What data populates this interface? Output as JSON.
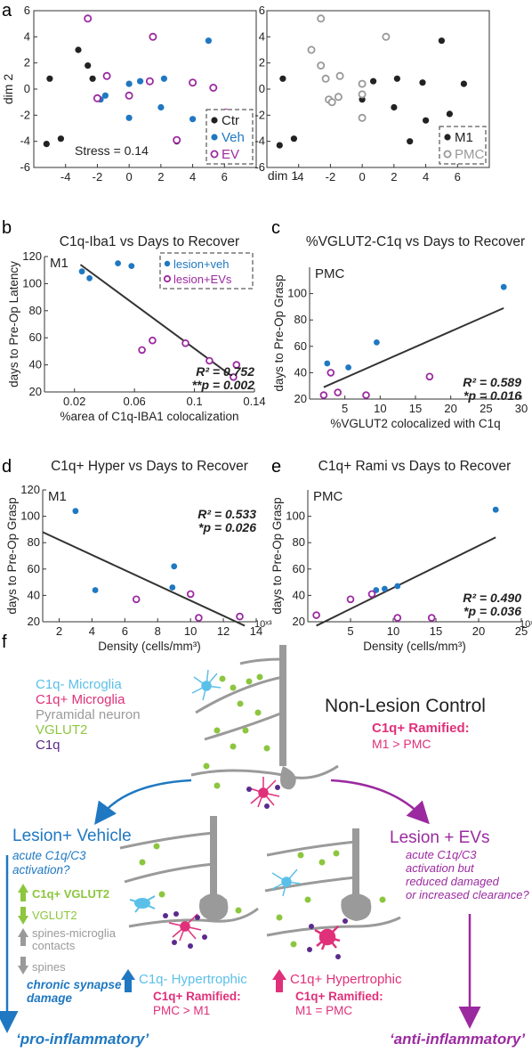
{
  "panel_letters": {
    "a": "a",
    "b": "b",
    "c": "c",
    "d": "d",
    "e": "e",
    "f": "f"
  },
  "colors": {
    "veh": "#1f78c1",
    "ev": "#9b2aa0",
    "ctr": "#222222",
    "pmc": "#999999",
    "line": "#333333",
    "neuron": "#9a9a9a",
    "microglia_neg": "#5bc0e8",
    "microglia_pos": "#e0307a",
    "vglut2": "#8cc63f",
    "c1q": "#5a2a8c",
    "arrow_veh": "#1f78c1",
    "arrow_ev": "#9b2aa0"
  },
  "chart_data": [
    {
      "id": "a1",
      "type": "scatter",
      "title": "",
      "xlabel": "dim 1",
      "ylabel": "dim 2",
      "xlim": [
        -6,
        8
      ],
      "ylim": [
        -6,
        6
      ],
      "xticks": [
        -4,
        -2,
        0,
        2,
        4,
        6
      ],
      "yticks": [
        -6,
        -4,
        -2,
        0,
        2,
        4,
        6
      ],
      "annotation": "Stress = 0.14",
      "legend": [
        "Ctr",
        "Veh",
        "EV"
      ],
      "legend_position": "bottom-right",
      "series": [
        {
          "name": "Ctr",
          "marker": "filled",
          "color": "#222222",
          "points": [
            [
              -5.2,
              -4.2
            ],
            [
              -5,
              0.8
            ],
            [
              -4.3,
              -3.8
            ],
            [
              -3.2,
              3
            ],
            [
              -2.6,
              1.8
            ],
            [
              -2.3,
              0.8
            ],
            [
              3,
              -4
            ]
          ]
        },
        {
          "name": "Veh",
          "marker": "filled",
          "color": "#1f78c1",
          "points": [
            [
              -1.8,
              -0.8
            ],
            [
              -1.5,
              -0.5
            ],
            [
              0,
              0.4
            ],
            [
              0.7,
              0.6
            ],
            [
              2,
              -1.4
            ],
            [
              2.2,
              0.8
            ],
            [
              4,
              -2.3
            ],
            [
              5,
              3.7
            ],
            [
              5.5,
              -1.9
            ],
            [
              0,
              -2.2
            ]
          ]
        },
        {
          "name": "EV",
          "marker": "open",
          "color": "#9b2aa0",
          "points": [
            [
              -2.6,
              5.4
            ],
            [
              -2,
              -0.7
            ],
            [
              -1.4,
              1
            ],
            [
              0,
              -0.5
            ],
            [
              1.3,
              0.6
            ],
            [
              1.5,
              4
            ],
            [
              4,
              0.5
            ],
            [
              5.3,
              0.1
            ],
            [
              6.1,
              -1.8
            ],
            [
              3,
              -3.9
            ]
          ]
        }
      ]
    },
    {
      "id": "a2",
      "type": "scatter",
      "title": "",
      "xlabel": "",
      "ylabel": "",
      "xlim": [
        -6,
        8
      ],
      "ylim": [
        -6,
        6
      ],
      "xticks": [
        -4,
        -2,
        0,
        2,
        4,
        6
      ],
      "yticks": [
        -6,
        -4,
        -2,
        0,
        2,
        4,
        6
      ],
      "legend": [
        "M1",
        "PMC"
      ],
      "legend_position": "bottom-right",
      "series": [
        {
          "name": "M1",
          "marker": "filled",
          "color": "#222222",
          "points": [
            [
              -5.2,
              -4.3
            ],
            [
              -5,
              0.8
            ],
            [
              -4.3,
              -3.8
            ],
            [
              0,
              -0.8
            ],
            [
              2,
              -1.4
            ],
            [
              2.2,
              0.8
            ],
            [
              3,
              -4
            ],
            [
              3.8,
              0.5
            ],
            [
              4,
              -2.4
            ],
            [
              5,
              3.7
            ],
            [
              5.5,
              -1.9
            ],
            [
              0.7,
              0.6
            ],
            [
              6.4,
              0.4
            ]
          ]
        },
        {
          "name": "PMC",
          "marker": "open",
          "color": "#999999",
          "points": [
            [
              -3.2,
              3
            ],
            [
              -2.6,
              5.4
            ],
            [
              -2.6,
              1.8
            ],
            [
              -2.3,
              0.8
            ],
            [
              -2.1,
              -0.8
            ],
            [
              -1.9,
              -1
            ],
            [
              -1.4,
              1
            ],
            [
              -1.5,
              -0.6
            ],
            [
              0,
              0.4
            ],
            [
              0,
              -2.2
            ],
            [
              0,
              -0.4
            ],
            [
              1.5,
              4
            ]
          ]
        }
      ]
    },
    {
      "id": "b",
      "type": "scatter",
      "title": "C1q-Iba1 vs Days to Recover",
      "region": "M1",
      "xlabel": "%area of C1q-IBA1 colocalization",
      "ylabel": "days to Pre-Op Latency",
      "xlim": [
        0,
        0.14
      ],
      "ylim": [
        20,
        120
      ],
      "xticks": [
        0.02,
        0.06,
        0.1,
        0.14
      ],
      "xtick_labels": [
        "0.02",
        "0.06",
        "0.1",
        "0.14"
      ],
      "yticks": [
        20,
        40,
        60,
        80,
        100,
        120
      ],
      "stats": [
        "R² = 0.752",
        "**p = 0.002"
      ],
      "legend": [
        "lesion+veh",
        "lesion+EVs"
      ],
      "legend_position": "top-right",
      "fit": [
        [
          0.024,
          114
        ],
        [
          0.127,
          30
        ]
      ],
      "series": [
        {
          "name": "lesion+veh",
          "marker": "filled",
          "color": "#1f78c1",
          "points": [
            [
              0.025,
              109
            ],
            [
              0.03,
              104
            ],
            [
              0.049,
              115
            ],
            [
              0.058,
              113
            ]
          ]
        },
        {
          "name": "lesion+EVs",
          "marker": "open",
          "color": "#9b2aa0",
          "points": [
            [
              0.065,
              51
            ],
            [
              0.072,
              58
            ],
            [
              0.094,
              56
            ],
            [
              0.11,
              43
            ],
            [
              0.126,
              31
            ],
            [
              0.128,
              40
            ]
          ]
        }
      ]
    },
    {
      "id": "c",
      "type": "scatter",
      "title": "%VGLUT2-C1q vs Days to Recover",
      "region": "PMC",
      "xlabel": "%VGLUT2 colocalized with C1q",
      "ylabel": "days to Pre-Op Grasp",
      "xlim": [
        0,
        30
      ],
      "ylim": [
        20,
        120
      ],
      "xticks": [
        5,
        10,
        15,
        20,
        25,
        30
      ],
      "yticks": [
        20,
        40,
        60,
        80,
        100
      ],
      "stats": [
        "R² = 0.589",
        "*p = 0.016"
      ],
      "fit": [
        [
          2,
          29
        ],
        [
          27.5,
          89
        ]
      ],
      "series": [
        {
          "name": "lesion+veh",
          "marker": "filled",
          "color": "#1f78c1",
          "points": [
            [
              2.5,
              47
            ],
            [
              5.5,
              44
            ],
            [
              9.5,
              63
            ],
            [
              27.5,
              105
            ]
          ]
        },
        {
          "name": "lesion+EVs",
          "marker": "open",
          "color": "#9b2aa0",
          "points": [
            [
              2,
              23
            ],
            [
              3,
              40
            ],
            [
              4,
              25
            ],
            [
              8,
              23
            ],
            [
              17,
              37
            ]
          ]
        }
      ]
    },
    {
      "id": "d",
      "type": "scatter",
      "title": "C1q+ Hyper vs Days to Recover",
      "region": "M1",
      "xlabel": "Density (cells/mm³)",
      "ylabel": "days to Pre-Op Grasp",
      "xscale_label": "10ˣ³",
      "xlim": [
        1,
        14
      ],
      "ylim": [
        20,
        120
      ],
      "xticks": [
        2,
        4,
        6,
        8,
        10,
        12,
        14
      ],
      "yticks": [
        20,
        40,
        60,
        80,
        100,
        120
      ],
      "stats": [
        "R² = 0.533",
        "*p = 0.026"
      ],
      "fit": [
        [
          1,
          88
        ],
        [
          13.3,
          17
        ]
      ],
      "series": [
        {
          "name": "lesion+veh",
          "marker": "filled",
          "color": "#1f78c1",
          "points": [
            [
              3,
              104
            ],
            [
              4.2,
              44
            ],
            [
              8.9,
              46
            ],
            [
              9,
              62
            ]
          ]
        },
        {
          "name": "lesion+EVs",
          "marker": "open",
          "color": "#9b2aa0",
          "points": [
            [
              6.7,
              37
            ],
            [
              10,
              41
            ],
            [
              10.5,
              23
            ],
            [
              13,
              24
            ]
          ]
        }
      ]
    },
    {
      "id": "e",
      "type": "scatter",
      "title": "C1q+ Rami vs Days to Recover",
      "region": "PMC",
      "xlabel": "Density (cells/mm³)",
      "ylabel": "days to Pre-Op Grasp",
      "xscale_label": "10ˣ³",
      "xlim": [
        0,
        25
      ],
      "ylim": [
        20,
        120
      ],
      "xticks": [
        5,
        10,
        15,
        20,
        25
      ],
      "yticks": [
        20,
        40,
        60,
        80,
        100
      ],
      "stats": [
        "R² = 0.490",
        "*p = 0.036"
      ],
      "fit": [
        [
          1,
          17
        ],
        [
          22,
          84
        ]
      ],
      "series": [
        {
          "name": "lesion+veh",
          "marker": "filled",
          "color": "#1f78c1",
          "points": [
            [
              8,
              44
            ],
            [
              9,
              45
            ],
            [
              10.5,
              47
            ],
            [
              22,
              105
            ]
          ]
        },
        {
          "name": "lesion+EVs",
          "marker": "open",
          "color": "#9b2aa0",
          "points": [
            [
              1,
              25
            ],
            [
              5,
              37
            ],
            [
              7.5,
              41
            ],
            [
              10.5,
              23
            ],
            [
              14.5,
              23
            ]
          ]
        }
      ]
    }
  ],
  "figure_f": {
    "legend": [
      "C1q- Microglia",
      "C1q+ Microglia",
      "Pyramidal neuron",
      "VGLUT2",
      "C1q"
    ],
    "control_title": "Non-Lesion Control",
    "control_note_1": "C1q+ Ramified:",
    "control_note_2": "M1 > PMC",
    "veh_title": "Lesion+ Vehicle",
    "veh_q1": "acute C1q/C3",
    "veh_q2": "activation?",
    "veh_up_vglut": "C1q+ VGLUT2",
    "veh_down_vglut": "VGLUT2",
    "veh_contacts_1": "spines-microglia",
    "veh_contacts_2": "contacts",
    "veh_spines": "spines",
    "veh_chronic_1": "chronic synapse",
    "veh_chronic_2": "damage",
    "veh_hyper": "C1q- Hypertrophic",
    "veh_rami_1": "C1q+ Ramified:",
    "veh_rami_2": "PMC > M1",
    "veh_outcome": "‘pro-inflammatory’",
    "ev_title": "Lesion + EVs",
    "ev_q1": "acute C1q/C3",
    "ev_q2": "activation but",
    "ev_q3": "reduced damaged",
    "ev_q4": "or increased clearance?",
    "ev_hyper": "C1q+ Hypertrophic",
    "ev_rami_1": "C1q+ Ramified:",
    "ev_rami_2": "M1 = PMC",
    "ev_outcome": "‘anti-inflammatory’"
  }
}
